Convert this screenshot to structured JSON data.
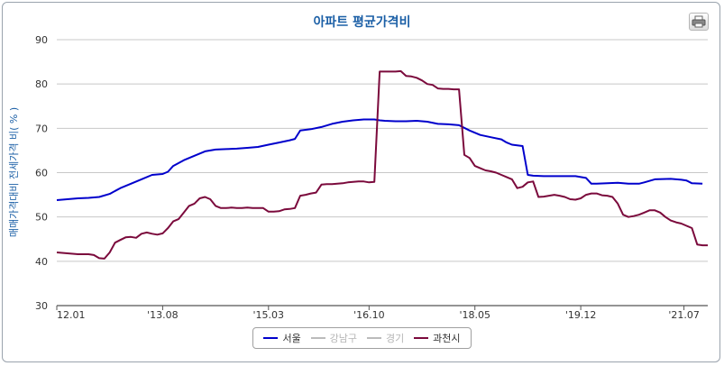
{
  "chart_data": {
    "type": "line",
    "title": "아파트 평균가격비",
    "ylabel": "매매가격대비 전세가격 비( % )",
    "xlabel": "",
    "ylim": [
      30,
      90
    ],
    "yticks": [
      "30",
      "40",
      "50",
      "60",
      "70",
      "80",
      "90"
    ],
    "xticks": [
      "12.01",
      "'13.08",
      "'15.03",
      "'16.10",
      "'18.05",
      "'19.12",
      "'21.07"
    ],
    "grid": true,
    "legend_position": "bottom",
    "series": [
      {
        "name": "서울",
        "color": "#0000cc",
        "visible": true,
        "points": [
          [
            0,
            53.8
          ],
          [
            2,
            54.0
          ],
          [
            4,
            54.2
          ],
          [
            6,
            54.3
          ],
          [
            8,
            54.5
          ],
          [
            10,
            55.2
          ],
          [
            12,
            56.5
          ],
          [
            14,
            57.5
          ],
          [
            16,
            58.5
          ],
          [
            18,
            59.5
          ],
          [
            20,
            59.7
          ],
          [
            21,
            60.2
          ],
          [
            22,
            61.5
          ],
          [
            24,
            62.8
          ],
          [
            26,
            63.8
          ],
          [
            28,
            64.8
          ],
          [
            30,
            65.2
          ],
          [
            32,
            65.3
          ],
          [
            34,
            65.4
          ],
          [
            36,
            65.6
          ],
          [
            38,
            65.8
          ],
          [
            40,
            66.3
          ],
          [
            42,
            66.8
          ],
          [
            44,
            67.3
          ],
          [
            45,
            67.6
          ],
          [
            46,
            69.5
          ],
          [
            48,
            69.8
          ],
          [
            50,
            70.3
          ],
          [
            52,
            71.0
          ],
          [
            54,
            71.5
          ],
          [
            56,
            71.8
          ],
          [
            58,
            72.0
          ],
          [
            60,
            72.0
          ],
          [
            61,
            71.8
          ],
          [
            62,
            71.7
          ],
          [
            64,
            71.6
          ],
          [
            66,
            71.6
          ],
          [
            68,
            71.7
          ],
          [
            70,
            71.5
          ],
          [
            72,
            71.0
          ],
          [
            74,
            70.9
          ],
          [
            76,
            70.7
          ],
          [
            78,
            69.5
          ],
          [
            80,
            68.5
          ],
          [
            82,
            68.0
          ],
          [
            84,
            67.5
          ],
          [
            85,
            66.8
          ],
          [
            86,
            66.3
          ],
          [
            88,
            66.0
          ],
          [
            89,
            59.5
          ],
          [
            90,
            59.3
          ],
          [
            92,
            59.2
          ],
          [
            94,
            59.2
          ],
          [
            96,
            59.2
          ],
          [
            98,
            59.2
          ],
          [
            99,
            59.0
          ],
          [
            100,
            58.8
          ],
          [
            101,
            57.5
          ],
          [
            102,
            57.5
          ],
          [
            104,
            57.6
          ],
          [
            106,
            57.7
          ],
          [
            107,
            57.6
          ],
          [
            108,
            57.5
          ],
          [
            110,
            57.5
          ],
          [
            111,
            57.8
          ],
          [
            113,
            58.5
          ],
          [
            116,
            58.6
          ],
          [
            118,
            58.4
          ],
          [
            119,
            58.2
          ],
          [
            120,
            57.6
          ],
          [
            122,
            57.5
          ]
        ]
      },
      {
        "name": "강남구",
        "color": "#bbbbbb",
        "visible": false,
        "points": []
      },
      {
        "name": "경기",
        "color": "#bbbbbb",
        "visible": false,
        "points": []
      },
      {
        "name": "과천시",
        "color": "#7b0a3c",
        "visible": true,
        "points": [
          [
            0,
            42.0
          ],
          [
            2,
            41.8
          ],
          [
            4,
            41.6
          ],
          [
            6,
            41.6
          ],
          [
            7,
            41.4
          ],
          [
            8,
            40.7
          ],
          [
            9,
            40.6
          ],
          [
            10,
            42.0
          ],
          [
            11,
            44.2
          ],
          [
            12,
            44.8
          ],
          [
            13,
            45.4
          ],
          [
            14,
            45.5
          ],
          [
            15,
            45.3
          ],
          [
            16,
            46.2
          ],
          [
            17,
            46.5
          ],
          [
            18,
            46.2
          ],
          [
            19,
            46.0
          ],
          [
            20,
            46.3
          ],
          [
            21,
            47.5
          ],
          [
            22,
            49.0
          ],
          [
            23,
            49.5
          ],
          [
            24,
            51.0
          ],
          [
            25,
            52.5
          ],
          [
            26,
            53.0
          ],
          [
            27,
            54.2
          ],
          [
            28,
            54.5
          ],
          [
            29,
            54.0
          ],
          [
            30,
            52.5
          ],
          [
            31,
            52.0
          ],
          [
            32,
            52.0
          ],
          [
            33,
            52.1
          ],
          [
            34,
            52.0
          ],
          [
            35,
            52.0
          ],
          [
            36,
            52.1
          ],
          [
            37,
            52.0
          ],
          [
            38,
            52.0
          ],
          [
            39,
            52.0
          ],
          [
            40,
            51.2
          ],
          [
            41,
            51.2
          ],
          [
            42,
            51.3
          ],
          [
            43,
            51.7
          ],
          [
            44,
            51.8
          ],
          [
            45,
            52.0
          ],
          [
            46,
            54.8
          ],
          [
            47,
            55.0
          ],
          [
            48,
            55.3
          ],
          [
            49,
            55.5
          ],
          [
            50,
            57.3
          ],
          [
            51,
            57.4
          ],
          [
            52,
            57.4
          ],
          [
            53,
            57.5
          ],
          [
            54,
            57.6
          ],
          [
            55,
            57.8
          ],
          [
            56,
            57.9
          ],
          [
            57,
            58.0
          ],
          [
            58,
            58.0
          ],
          [
            59,
            57.8
          ],
          [
            60,
            57.9
          ],
          [
            61,
            82.8
          ],
          [
            62,
            82.8
          ],
          [
            63,
            82.8
          ],
          [
            64,
            82.8
          ],
          [
            65,
            82.9
          ],
          [
            66,
            81.8
          ],
          [
            67,
            81.7
          ],
          [
            68,
            81.4
          ],
          [
            69,
            80.8
          ],
          [
            70,
            80.0
          ],
          [
            71,
            79.8
          ],
          [
            72,
            79.0
          ],
          [
            73,
            78.9
          ],
          [
            74,
            78.9
          ],
          [
            75,
            78.8
          ],
          [
            76,
            78.8
          ],
          [
            77,
            64.0
          ],
          [
            78,
            63.3
          ],
          [
            79,
            61.5
          ],
          [
            80,
            61.0
          ],
          [
            81,
            60.5
          ],
          [
            82,
            60.3
          ],
          [
            83,
            60.0
          ],
          [
            84,
            59.5
          ],
          [
            85,
            59.0
          ],
          [
            86,
            58.5
          ],
          [
            87,
            56.5
          ],
          [
            88,
            56.8
          ],
          [
            89,
            57.8
          ],
          [
            90,
            58.0
          ],
          [
            91,
            54.5
          ],
          [
            92,
            54.6
          ],
          [
            93,
            54.8
          ],
          [
            94,
            55.0
          ],
          [
            95,
            54.8
          ],
          [
            96,
            54.5
          ],
          [
            97,
            54.0
          ],
          [
            98,
            53.9
          ],
          [
            99,
            54.2
          ],
          [
            100,
            55.0
          ],
          [
            101,
            55.3
          ],
          [
            102,
            55.3
          ],
          [
            103,
            54.9
          ],
          [
            104,
            54.8
          ],
          [
            105,
            54.5
          ],
          [
            106,
            53.0
          ],
          [
            107,
            50.5
          ],
          [
            108,
            50.0
          ],
          [
            109,
            50.2
          ],
          [
            110,
            50.5
          ],
          [
            111,
            51.0
          ],
          [
            112,
            51.5
          ],
          [
            113,
            51.5
          ],
          [
            114,
            51.0
          ],
          [
            115,
            50.0
          ],
          [
            116,
            49.2
          ],
          [
            117,
            48.8
          ],
          [
            118,
            48.5
          ],
          [
            119,
            48.0
          ],
          [
            120,
            47.5
          ],
          [
            121,
            43.8
          ],
          [
            122,
            43.6
          ],
          [
            123,
            43.6
          ]
        ]
      }
    ]
  }
}
